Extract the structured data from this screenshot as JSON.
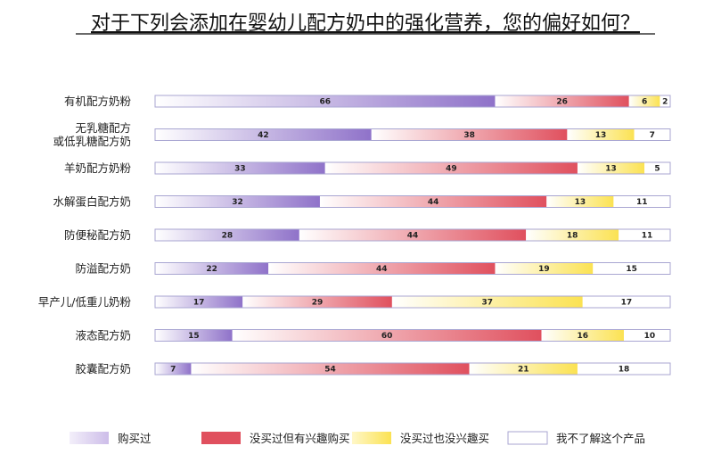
{
  "chart_data": {
    "type": "bar",
    "orientation": "horizontal",
    "stacked": true,
    "title": "对于下列会添加在婴幼儿配方奶中的强化营养，您的偏好如何？",
    "categories": [
      [
        "有机配方奶粉"
      ],
      [
        "无乳糖配方",
        "或低乳糖配方奶"
      ],
      [
        "羊奶配方奶粉"
      ],
      [
        "水解蛋白配方奶"
      ],
      [
        "防便秘配方奶"
      ],
      [
        "防溢配方奶"
      ],
      [
        "早产儿/低重儿奶粉"
      ],
      [
        "液态配方奶"
      ],
      [
        "胶囊配方奶"
      ]
    ],
    "series": [
      {
        "name": "购买过",
        "values": [
          66,
          42,
          33,
          32,
          28,
          22,
          17,
          15,
          7
        ]
      },
      {
        "name": "没买过但有兴趣购买",
        "values": [
          26,
          38,
          49,
          44,
          44,
          44,
          29,
          60,
          54
        ]
      },
      {
        "name": "没买过也没兴趣买",
        "values": [
          6,
          13,
          13,
          13,
          18,
          19,
          37,
          16,
          21
        ]
      },
      {
        "name": "我不了解这个产品",
        "values": [
          2,
          7,
          5,
          11,
          11,
          15,
          17,
          10,
          18
        ]
      }
    ],
    "xlim": [
      0,
      100
    ],
    "grid": false,
    "legend_position": "bottom",
    "colors": {
      "bought": "#8f72c9",
      "interested": "#e0505e",
      "not_interested": "#fbe252",
      "unknown": "#ffffff",
      "outline": "#a9a6d2"
    }
  }
}
